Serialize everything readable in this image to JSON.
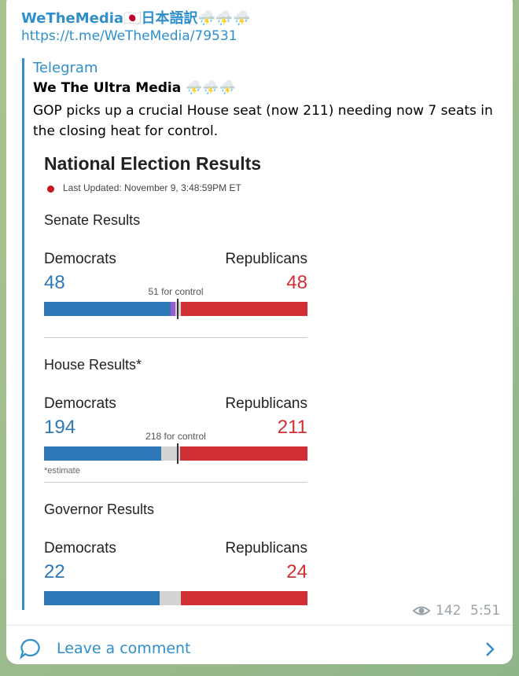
{
  "post": {
    "channel": "WeTheMedia🇯🇵日本語訳⛈️⛈️⛈️",
    "link": "https://t.me/WeTheMedia/79531",
    "quote": {
      "source": "Telegram",
      "author": "We The Ultra Media ⛈️⛈️⛈️",
      "text": "GOP picks up a crucial House seat (now 211) needing now 7 seats in the closing heat for control."
    },
    "image": {
      "title": "National Election Results",
      "updated": "Last Updated: November 9, 3:48:59PM ET",
      "races": [
        {
          "title": "Senate Results",
          "dem_label": "Democrats",
          "rep_label": "Republicans",
          "dem": 48,
          "rep": 48,
          "independent": 2,
          "range": [
            0,
            100
          ],
          "control_label": "51 for control"
        },
        {
          "title": "House Results*",
          "dem_label": "Democrats",
          "rep_label": "Republicans",
          "dem": 194,
          "rep": 211,
          "range": [
            0,
            435
          ],
          "control_label": "218 for control",
          "note": "*estimate"
        },
        {
          "title": "Governor Results",
          "dem_label": "Democrats",
          "rep_label": "Republicans",
          "dem": 22,
          "rep": 24,
          "range": [
            0,
            50
          ]
        }
      ],
      "colors": {
        "dem": "#2e78b7",
        "rep": "#d12f36",
        "independent": "#9b5bd4",
        "rest": "#d3d3d3"
      }
    },
    "views": 142,
    "time": "5:51"
  },
  "footer": {
    "comment": "Leave a comment"
  }
}
